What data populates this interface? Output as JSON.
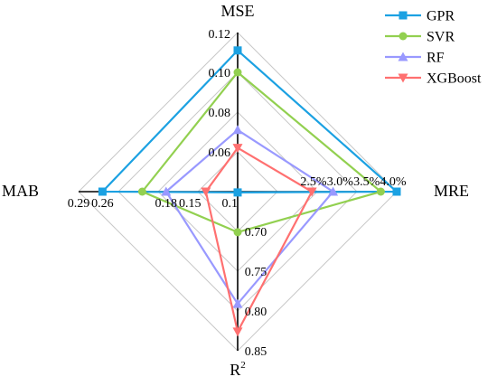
{
  "chart_data": {
    "type": "radar",
    "axes": [
      {
        "key": "mse",
        "label": "MSE",
        "label_sup": "",
        "scale": "linear",
        "center_value": 0.04,
        "max_value": 0.12,
        "ticks": [
          {
            "value": 0.06,
            "label": "0.06"
          },
          {
            "value": 0.08,
            "label": "0.08"
          },
          {
            "value": 0.1,
            "label": "0.10"
          },
          {
            "value": 0.12,
            "label": "0.12"
          }
        ]
      },
      {
        "key": "mre",
        "label": "MRE",
        "label_sup": "",
        "scale": "linear",
        "center_value": 1.0,
        "max_value": 4.0,
        "ticks": [
          {
            "value": 2.5,
            "label": "2.5%"
          },
          {
            "value": 3.0,
            "label": "3.0%"
          },
          {
            "value": 3.5,
            "label": "3.5%"
          },
          {
            "value": 4.0,
            "label": "4.0%"
          }
        ]
      },
      {
        "key": "r2",
        "label": "R",
        "label_sup": "2",
        "scale": "linear",
        "center_value": 0.65,
        "max_value": 0.85,
        "ticks": [
          {
            "value": 0.7,
            "label": "0.70"
          },
          {
            "value": 0.75,
            "label": "0.75"
          },
          {
            "value": 0.8,
            "label": "0.80"
          },
          {
            "value": 0.85,
            "label": "0.85"
          }
        ]
      },
      {
        "key": "mab",
        "label": "MAB",
        "label_sup": "",
        "scale": "linear",
        "center_value": 0.09,
        "max_value": 0.29,
        "ticks": [
          {
            "value": 0.1,
            "label": "0.1"
          },
          {
            "value": 0.15,
            "label": "0.15"
          },
          {
            "value": 0.18,
            "label": "0.18"
          },
          {
            "value": 0.26,
            "label": "0.26"
          },
          {
            "value": 0.29,
            "label": "0.29"
          }
        ]
      }
    ],
    "series": [
      {
        "name": "GPR",
        "color": "#1ba1e2",
        "marker": "square",
        "values": {
          "mse": 0.111,
          "mre": 4.0,
          "r2": 0.651,
          "mab": 0.26
        }
      },
      {
        "name": "SVR",
        "color": "#92d050",
        "marker": "circle",
        "values": {
          "mse": 0.1,
          "mre": 3.7,
          "r2": 0.701,
          "mab": 0.21
        }
      },
      {
        "name": "RF",
        "color": "#9999ff",
        "marker": "triangle-up",
        "values": {
          "mse": 0.071,
          "mre": 2.8,
          "r2": 0.791,
          "mab": 0.18
        }
      },
      {
        "name": "XGBoost",
        "color": "#ff7070",
        "marker": "triangle-down",
        "values": {
          "mse": 0.062,
          "mre": 2.4,
          "r2": 0.826,
          "mab": 0.13
        }
      }
    ],
    "grid": true,
    "legend_position": "top-right"
  }
}
